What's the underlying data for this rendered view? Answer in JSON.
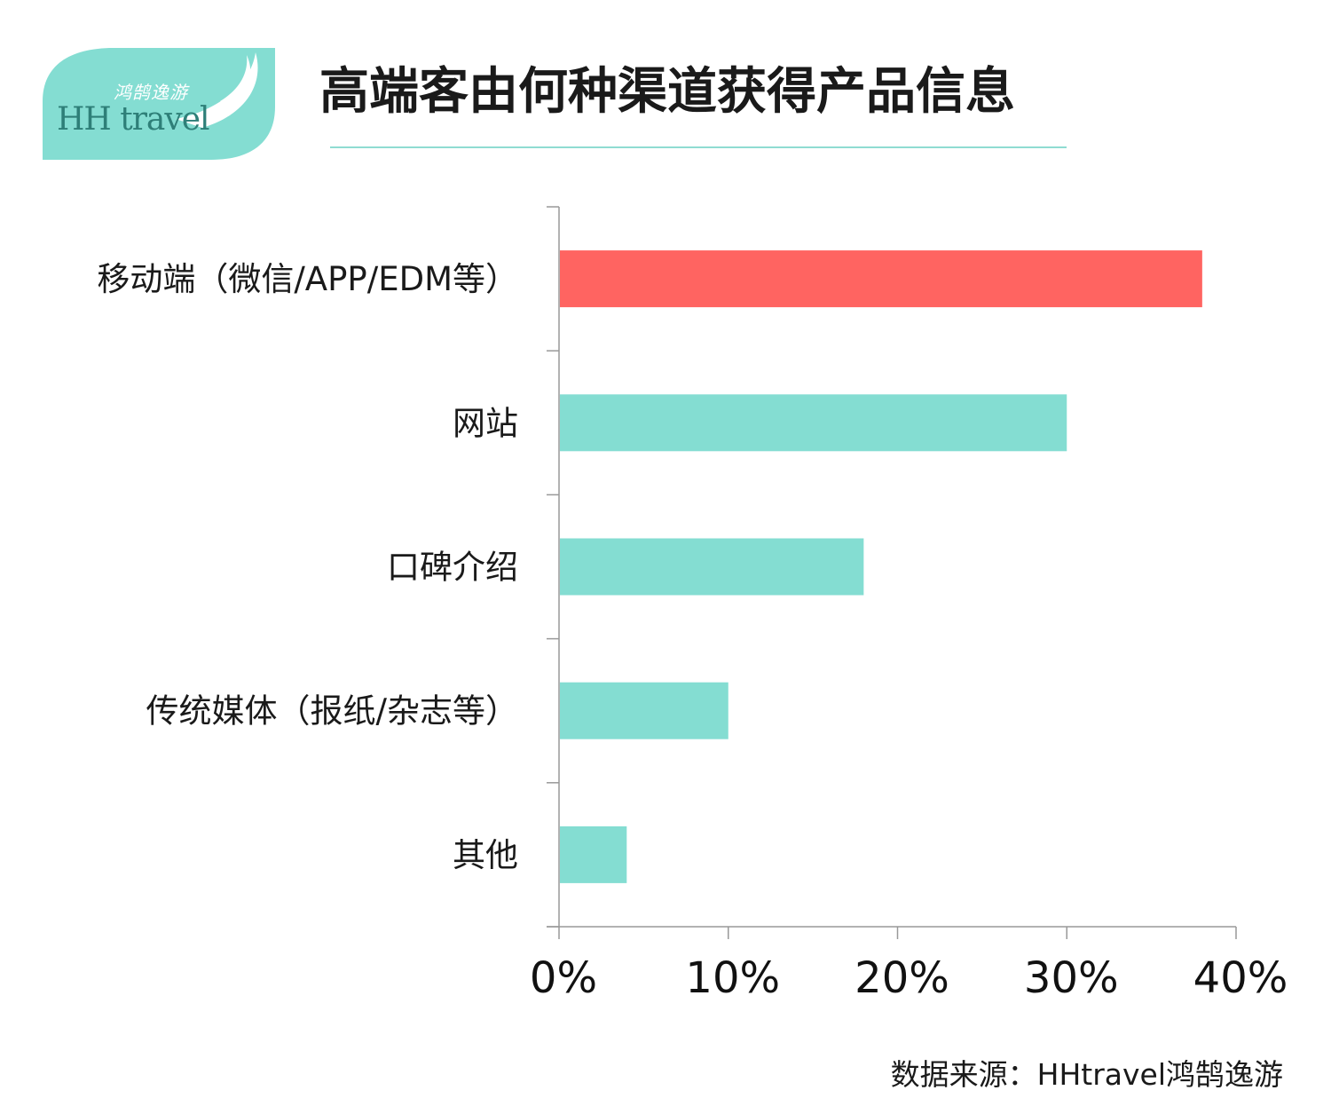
{
  "logo": {
    "cn": "鸿鹄逸游",
    "en": "HH travel"
  },
  "title": "高端客由何种渠道获得产品信息",
  "source": "数据来源：HHtravel鸿鹄逸游",
  "colors": {
    "highlight": "#ff6461",
    "bar": "#84ddd2",
    "axis": "#999999",
    "brand": "#84ddd2"
  },
  "chart_data": {
    "type": "bar",
    "orientation": "horizontal",
    "categories": [
      "移动端（微信/APP/EDM等）",
      "网站",
      "口碑介绍",
      "传统媒体（报纸/杂志等）",
      "其他"
    ],
    "values": [
      38,
      30,
      18,
      10,
      4
    ],
    "highlight_index": 0,
    "xlim": [
      0,
      40
    ],
    "xticks": [
      0,
      10,
      20,
      30,
      40
    ],
    "tick_suffix": "%",
    "title": "高端客由何种渠道获得产品信息",
    "xlabel": "",
    "ylabel": "",
    "grid": false,
    "legend": "none"
  }
}
